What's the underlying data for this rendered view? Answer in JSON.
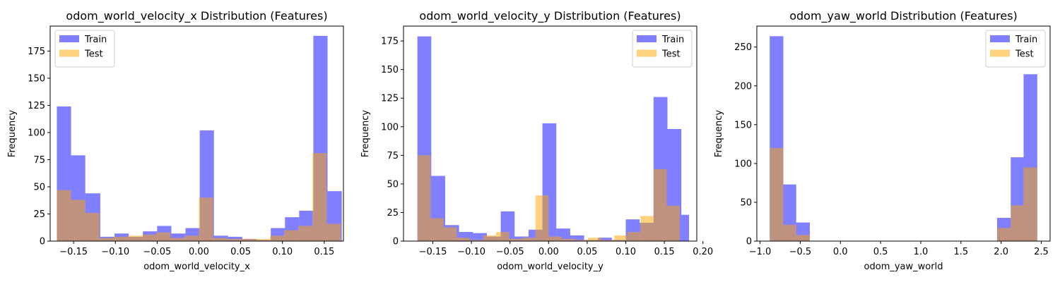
{
  "chart_data": [
    {
      "type": "histogram",
      "title": "odom_world_velocity_x Distribution (Features)",
      "xlabel": "odom_world_velocity_x",
      "ylabel": "Frequency",
      "xlim": [
        -0.178,
        0.173
      ],
      "ylim": [
        0,
        198
      ],
      "xticks": [
        -0.15,
        -0.1,
        -0.05,
        0.0,
        0.05,
        0.1,
        0.15
      ],
      "xtick_labels": [
        "−0.15",
        "−0.10",
        "−0.05",
        "0.00",
        "0.05",
        "0.10",
        "0.15"
      ],
      "yticks": [
        0,
        25,
        50,
        75,
        100,
        125,
        150,
        175
      ],
      "ytick_labels": [
        "0",
        "25",
        "50",
        "75",
        "100",
        "125",
        "150",
        "175"
      ],
      "legend_position": "top-left",
      "grid": false,
      "series": [
        {
          "name": "Train",
          "color": "#0000ff",
          "opacity": 0.5,
          "bins": [
            [
              -0.17,
              -0.153,
              124
            ],
            [
              -0.153,
              -0.136,
              79
            ],
            [
              -0.136,
              -0.118,
              44
            ],
            [
              -0.118,
              -0.101,
              4
            ],
            [
              -0.101,
              -0.084,
              7
            ],
            [
              -0.084,
              -0.067,
              4
            ],
            [
              -0.067,
              -0.05,
              9
            ],
            [
              -0.05,
              -0.033,
              14
            ],
            [
              -0.033,
              -0.016,
              7
            ],
            [
              -0.016,
              0.001,
              12
            ],
            [
              0.001,
              0.018,
              102
            ],
            [
              0.018,
              0.035,
              5
            ],
            [
              0.035,
              0.052,
              4
            ],
            [
              0.052,
              0.069,
              2
            ],
            [
              0.069,
              0.086,
              1
            ],
            [
              0.086,
              0.103,
              12
            ],
            [
              0.103,
              0.12,
              22
            ],
            [
              0.12,
              0.137,
              28
            ],
            [
              0.137,
              0.154,
              189
            ],
            [
              0.154,
              0.171,
              46
            ]
          ]
        },
        {
          "name": "Test",
          "color": "#ffa500",
          "opacity": 0.5,
          "bins": [
            [
              -0.17,
              -0.153,
              47
            ],
            [
              -0.153,
              -0.136,
              38
            ],
            [
              -0.136,
              -0.119,
              26
            ],
            [
              -0.119,
              -0.102,
              3
            ],
            [
              -0.102,
              -0.085,
              4
            ],
            [
              -0.085,
              -0.068,
              5
            ],
            [
              -0.068,
              -0.051,
              6
            ],
            [
              -0.051,
              -0.034,
              8
            ],
            [
              -0.034,
              -0.017,
              3
            ],
            [
              -0.017,
              0.0,
              5
            ],
            [
              0.0,
              0.017,
              40
            ],
            [
              0.017,
              0.034,
              3
            ],
            [
              0.034,
              0.051,
              2
            ],
            [
              0.051,
              0.068,
              2
            ],
            [
              0.068,
              0.085,
              2
            ],
            [
              0.085,
              0.102,
              5
            ],
            [
              0.102,
              0.119,
              10
            ],
            [
              0.119,
              0.136,
              14
            ],
            [
              0.136,
              0.153,
              81
            ],
            [
              0.153,
              0.17,
              16
            ]
          ]
        }
      ]
    },
    {
      "type": "histogram",
      "title": "odom_world_velocity_y Distribution (Features)",
      "xlabel": "odom_world_velocity_y",
      "ylabel": "Frequency",
      "xlim": [
        -0.188,
        0.192
      ],
      "ylim": [
        0,
        188
      ],
      "xticks": [
        -0.15,
        -0.1,
        -0.05,
        0.0,
        0.05,
        0.1,
        0.15,
        0.2
      ],
      "xtick_labels": [
        "−0.15",
        "−0.10",
        "−0.05",
        "0.00",
        "0.05",
        "0.10",
        "0.15",
        "0.20"
      ],
      "yticks": [
        0,
        25,
        50,
        75,
        100,
        125,
        150,
        175
      ],
      "ytick_labels": [
        "0",
        "25",
        "50",
        "75",
        "100",
        "125",
        "150",
        "175"
      ],
      "legend_position": "top-right",
      "grid": false,
      "series": [
        {
          "name": "Train",
          "color": "#0000ff",
          "opacity": 0.5,
          "bins": [
            [
              -0.17,
              -0.152,
              179
            ],
            [
              -0.152,
              -0.134,
              57
            ],
            [
              -0.134,
              -0.116,
              14
            ],
            [
              -0.116,
              -0.098,
              8
            ],
            [
              -0.098,
              -0.08,
              7
            ],
            [
              -0.08,
              -0.062,
              4
            ],
            [
              -0.062,
              -0.044,
              26
            ],
            [
              -0.044,
              -0.026,
              4
            ],
            [
              -0.026,
              -0.008,
              10
            ],
            [
              -0.008,
              0.01,
              103
            ],
            [
              0.01,
              0.028,
              11
            ],
            [
              0.028,
              0.046,
              5
            ],
            [
              0.046,
              0.064,
              1
            ],
            [
              0.064,
              0.082,
              3
            ],
            [
              0.082,
              0.1,
              1
            ],
            [
              0.1,
              0.118,
              19
            ],
            [
              0.118,
              0.136,
              16
            ],
            [
              0.136,
              0.154,
              126
            ],
            [
              0.154,
              0.172,
              98
            ],
            [
              0.172,
              0.182,
              23
            ]
          ]
        },
        {
          "name": "Test",
          "color": "#ffa500",
          "opacity": 0.5,
          "bins": [
            [
              -0.17,
              -0.153,
              75
            ],
            [
              -0.153,
              -0.136,
              20
            ],
            [
              -0.136,
              -0.119,
              12
            ],
            [
              -0.119,
              -0.102,
              3
            ],
            [
              -0.102,
              -0.085,
              1
            ],
            [
              -0.085,
              -0.068,
              5
            ],
            [
              -0.068,
              -0.051,
              8
            ],
            [
              -0.051,
              -0.034,
              2
            ],
            [
              -0.034,
              -0.017,
              3
            ],
            [
              -0.017,
              0.0,
              40
            ],
            [
              0.0,
              0.017,
              4
            ],
            [
              0.017,
              0.034,
              2
            ],
            [
              0.034,
              0.051,
              1
            ],
            [
              0.051,
              0.068,
              3
            ],
            [
              0.068,
              0.085,
              1
            ],
            [
              0.085,
              0.102,
              5
            ],
            [
              0.102,
              0.119,
              8
            ],
            [
              0.119,
              0.136,
              22
            ],
            [
              0.136,
              0.153,
              63
            ],
            [
              0.153,
              0.17,
              31
            ]
          ]
        }
      ]
    },
    {
      "type": "histogram",
      "title": "odom_yaw_world Distribution (Features)",
      "xlabel": "odom_yaw_world",
      "ylabel": "Frequency",
      "xlim": [
        -1.04,
        2.61
      ],
      "ylim": [
        0,
        277
      ],
      "xticks": [
        -1.0,
        -0.5,
        0.0,
        0.5,
        1.0,
        1.5,
        2.0,
        2.5
      ],
      "xtick_labels": [
        "−1.0",
        "−0.5",
        "0.0",
        "0.5",
        "1.0",
        "1.5",
        "2.0",
        "2.5"
      ],
      "yticks": [
        0,
        50,
        100,
        150,
        200,
        250
      ],
      "ytick_labels": [
        "0",
        "50",
        "100",
        "150",
        "200",
        "250"
      ],
      "legend_position": "top-right",
      "grid": false,
      "series": [
        {
          "name": "Train",
          "color": "#0000ff",
          "opacity": 0.5,
          "bins": [
            [
              -0.88,
              -0.71,
              264
            ],
            [
              -0.71,
              -0.55,
              73
            ],
            [
              -0.55,
              -0.38,
              24
            ],
            [
              1.95,
              2.12,
              30
            ],
            [
              2.12,
              2.28,
              108
            ],
            [
              2.28,
              2.45,
              215
            ]
          ]
        },
        {
          "name": "Test",
          "color": "#ffa500",
          "opacity": 0.5,
          "bins": [
            [
              -0.88,
              -0.71,
              120
            ],
            [
              -0.71,
              -0.55,
              21
            ],
            [
              -0.55,
              -0.38,
              8
            ],
            [
              1.95,
              2.12,
              17
            ],
            [
              2.12,
              2.28,
              46
            ],
            [
              2.28,
              2.45,
              95
            ]
          ]
        }
      ]
    }
  ]
}
